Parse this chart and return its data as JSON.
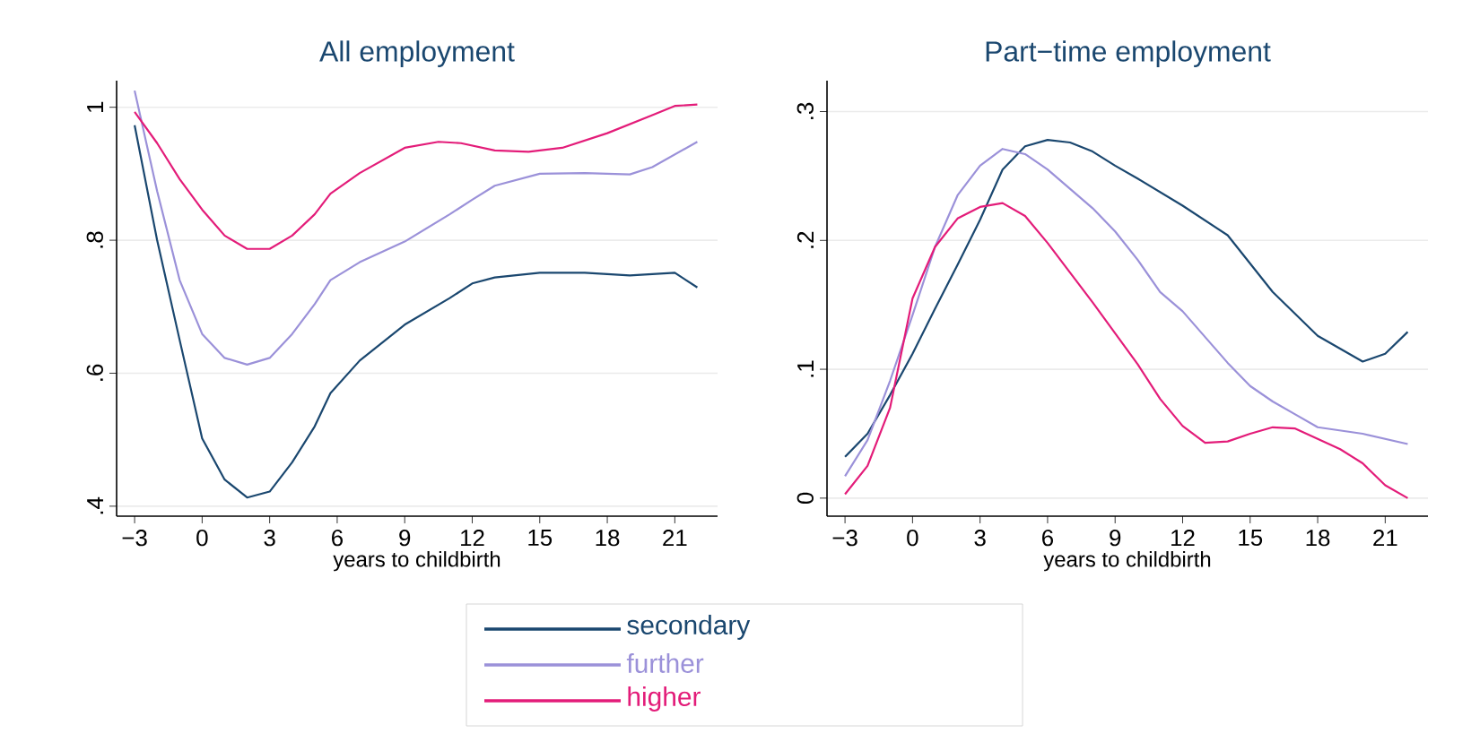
{
  "chart_data": [
    {
      "type": "line",
      "title": "All employment",
      "xlabel": "years to childbirth",
      "legend": "bottom",
      "grid": "y",
      "xlim": [
        -3.8,
        22.9
      ],
      "ylim": [
        0.385,
        1.04
      ],
      "xticks": [
        {
          "value": -3,
          "label": "−3"
        },
        0,
        3,
        6,
        9,
        12,
        15,
        18,
        21
      ],
      "yticks": [
        {
          "value": 0.4,
          "label": ".4"
        },
        {
          "value": 0.6,
          "label": ".6"
        },
        {
          "value": 0.8,
          "label": ".8"
        },
        1
      ],
      "series": [
        {
          "name": "secondary",
          "color": "#1a476f",
          "x": [
            -3,
            -2,
            -1,
            0,
            1,
            2,
            3,
            4,
            5,
            5.7,
            7,
            9,
            11,
            12,
            13,
            15,
            17,
            19,
            21,
            22
          ],
          "values": [
            0.973,
            0.8,
            0.65,
            0.502,
            0.44,
            0.413,
            0.422,
            0.466,
            0.52,
            0.57,
            0.619,
            0.673,
            0.713,
            0.735,
            0.744,
            0.751,
            0.751,
            0.747,
            0.751,
            0.729
          ]
        },
        {
          "name": "further",
          "color": "#9b91d9",
          "x": [
            -3,
            -2,
            -1,
            0,
            1,
            2,
            3,
            4,
            5,
            5.7,
            7,
            9,
            11,
            12,
            13,
            15,
            17,
            19,
            20,
            22
          ],
          "values": [
            1.025,
            0.874,
            0.74,
            0.659,
            0.623,
            0.613,
            0.623,
            0.659,
            0.704,
            0.74,
            0.767,
            0.798,
            0.839,
            0.861,
            0.882,
            0.9,
            0.901,
            0.899,
            0.91,
            0.948
          ]
        },
        {
          "name": "higher",
          "color": "#e31c79",
          "x": [
            -3,
            -2,
            -1,
            0,
            1,
            2,
            3,
            4,
            5,
            5.7,
            7,
            9,
            10.5,
            11.5,
            13,
            14.5,
            16,
            18,
            20,
            21,
            22
          ],
          "values": [
            0.993,
            0.946,
            0.892,
            0.846,
            0.807,
            0.787,
            0.787,
            0.807,
            0.839,
            0.87,
            0.901,
            0.939,
            0.948,
            0.946,
            0.935,
            0.933,
            0.939,
            0.961,
            0.988,
            1.002,
            1.004
          ]
        }
      ]
    },
    {
      "type": "line",
      "title": "Part−time employment",
      "xlabel": "years to childbirth",
      "grid": "y",
      "xlim": [
        -3.8,
        22.9
      ],
      "ylim": [
        -0.014,
        0.324
      ],
      "xticks": [
        {
          "value": -3,
          "label": "−3"
        },
        0,
        3,
        6,
        9,
        12,
        15,
        18,
        21
      ],
      "yticks": [
        0,
        {
          "value": 0.1,
          "label": ".1"
        },
        {
          "value": 0.2,
          "label": ".2"
        },
        {
          "value": 0.3,
          "label": ".3"
        }
      ],
      "series": [
        {
          "color": "#1a476f",
          "x": [
            -3,
            -2,
            -1,
            0,
            1,
            2,
            3,
            4,
            5,
            6,
            7,
            8,
            9,
            10,
            12,
            14,
            16,
            18,
            20,
            21,
            22
          ],
          "values": [
            0.032,
            0.05,
            0.08,
            0.112,
            0.147,
            0.181,
            0.216,
            0.255,
            0.273,
            0.278,
            0.276,
            0.269,
            0.258,
            0.248,
            0.227,
            0.204,
            0.16,
            0.126,
            0.106,
            0.112,
            0.129
          ]
        },
        {
          "color": "#9b91d9",
          "x": [
            -3,
            -2,
            -1,
            0,
            1,
            2,
            3,
            4,
            5,
            6,
            7,
            8,
            9,
            10,
            11,
            12,
            13,
            14,
            15,
            16,
            17,
            18,
            20,
            22
          ],
          "values": [
            0.017,
            0.045,
            0.091,
            0.142,
            0.195,
            0.235,
            0.258,
            0.271,
            0.267,
            0.255,
            0.24,
            0.225,
            0.207,
            0.185,
            0.16,
            0.145,
            0.125,
            0.105,
            0.087,
            0.075,
            0.065,
            0.055,
            0.05,
            0.042
          ]
        },
        {
          "color": "#e31c79",
          "x": [
            -3,
            -2,
            -1,
            0,
            1,
            2,
            3,
            4,
            5,
            6,
            7,
            8,
            9,
            10,
            11,
            12,
            13,
            14,
            15,
            16,
            17,
            18,
            19,
            20,
            21,
            22
          ],
          "values": [
            0.003,
            0.025,
            0.07,
            0.155,
            0.195,
            0.217,
            0.226,
            0.229,
            0.219,
            0.198,
            0.175,
            0.152,
            0.128,
            0.104,
            0.077,
            0.056,
            0.043,
            0.044,
            0.05,
            0.055,
            0.054,
            0.046,
            0.038,
            0.027,
            0.01,
            0.0
          ]
        }
      ]
    }
  ]
}
